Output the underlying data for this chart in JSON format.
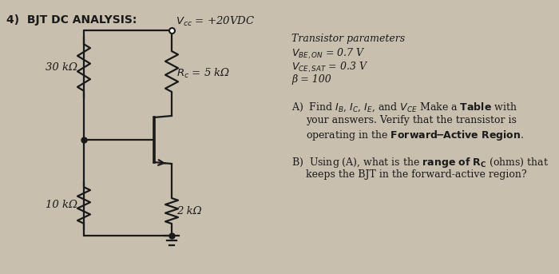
{
  "bg_color": "#c9bfaf",
  "title": "4)  BJT DC ANALYSIS:",
  "circuit": {
    "vcc_label": "$V_{cc}$ = +20VDC",
    "rc_label": "$R_c$ = 5 kΩ",
    "r1_label": "30 kΩ",
    "r2_label": "10 kΩ",
    "re_label": "2 kΩ"
  },
  "params_title": "Transistor parameters",
  "vbe": "$V_{BE,ON}$ = 0.7 V",
  "vce": "$V_{CE, SAT}$ = 0.3 V",
  "beta": "β = 100",
  "partA_pre": "A)  Find ",
  "partA_vars": "$I_B$, $I_C$, $I_E$",
  "partA_mid": ", and ",
  "partA_vce": "$V_{CE}$",
  "partA_post": " Make a ",
  "partA_table": "Table",
  "partA_post2": " with",
  "partA2": "your answers. Verify that the transistor is",
  "partA3_pre": "operating in the ",
  "partA3_bold": "Forward-Active Region",
  "partA3_end": ".",
  "partB_pre": "B)  Using (A), what is the ",
  "partB_bold": "range of ",
  "partB_rc": "$R_C$",
  "partB_post": " (ohms) that",
  "partB2": "keeps the BJT in the forward-active region?"
}
